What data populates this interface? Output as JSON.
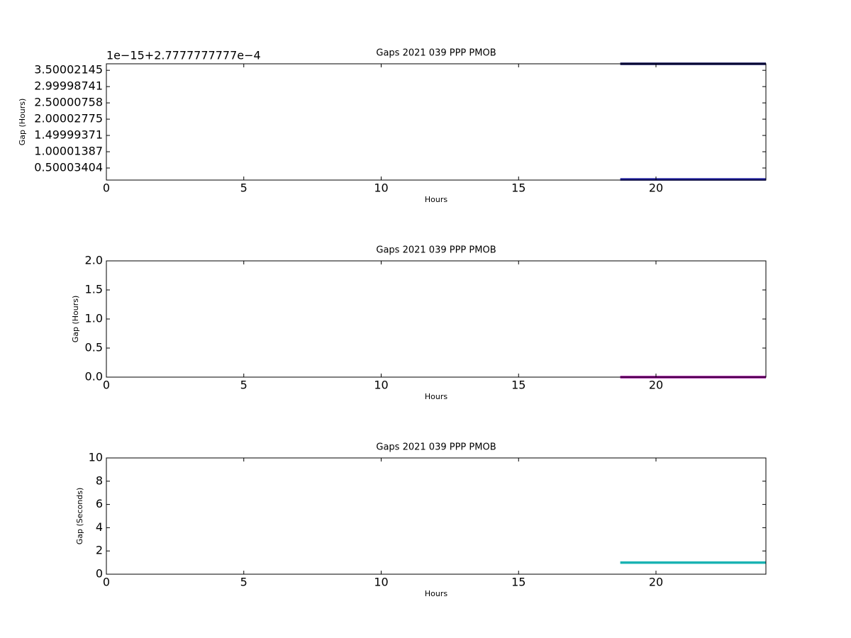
{
  "chart_data": [
    {
      "type": "line",
      "title": "Gaps 2021 039 PPP  PMOB",
      "xlabel": "Hours",
      "ylabel": "Gap (Hours)",
      "offset_label": "1e−15+2.7777777777e−4",
      "xlim": [
        0,
        24
      ],
      "xticks": [
        0,
        5,
        10,
        15,
        20
      ],
      "ylim": [
        0.13,
        3.7
      ],
      "yticks": [
        0.50003404,
        1.00001387,
        1.49999371,
        2.00002775,
        2.50000758,
        2.99998741,
        3.50002145
      ],
      "series": [
        {
          "color": "#1c1c9c",
          "x": [
            18.7,
            24
          ],
          "values": [
            0.15,
            0.15
          ]
        },
        {
          "color": "#10105a",
          "x": [
            18.7,
            24
          ],
          "values": [
            3.7,
            3.7
          ]
        }
      ]
    },
    {
      "type": "line",
      "title": "Gaps 2021 039 PPP  PMOB",
      "xlabel": "Hours",
      "ylabel": "Gap (Hours)",
      "xlim": [
        0,
        24
      ],
      "xticks": [
        0,
        5,
        10,
        15,
        20
      ],
      "ylim": [
        0,
        2
      ],
      "yticks": [
        {
          "value": 0,
          "label": "0.0"
        },
        {
          "value": 0.5,
          "label": "0.5"
        },
        {
          "value": 1,
          "label": "1.0"
        },
        {
          "value": 1.5,
          "label": "1.5"
        },
        {
          "value": 2,
          "label": "2.0"
        }
      ],
      "series": [
        {
          "color": "#990099",
          "x": [
            18.7,
            24
          ],
          "values": [
            0.000278,
            0.000278
          ]
        }
      ]
    },
    {
      "type": "line",
      "title": "Gaps 2021 039 PPP  PMOB",
      "xlabel": "Hours",
      "ylabel": "Gap (Seconds)",
      "xlim": [
        0,
        24
      ],
      "xticks": [
        0,
        5,
        10,
        15,
        20
      ],
      "ylim": [
        0,
        10
      ],
      "yticks": [
        0,
        2,
        4,
        6,
        8,
        10
      ],
      "series": [
        {
          "color": "#1ab3b3",
          "x": [
            18.7,
            24
          ],
          "values": [
            1,
            1
          ]
        }
      ]
    }
  ]
}
